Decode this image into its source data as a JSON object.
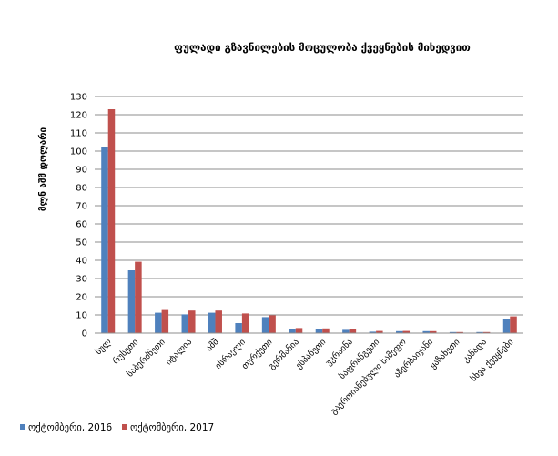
{
  "chart_data": {
    "type": "bar",
    "title": "ფულადი გზავნილების მოცულობა ქვეყნების მიხედვით",
    "xlabel": "",
    "ylabel": "მლნ აშშ დოლარი",
    "ylim": [
      0,
      130
    ],
    "yticks": [
      0,
      10,
      20,
      30,
      40,
      50,
      60,
      70,
      80,
      90,
      100,
      110,
      120,
      130
    ],
    "grid": true,
    "legend_position": "bottom-left",
    "categories": [
      "სულ",
      "რუსეთი",
      "საბერძნეთი",
      "იტალია",
      "აშშ",
      "ისრაელი",
      "თურქეთი",
      "გერმანია",
      "ესპანეთი",
      "უკრაინა",
      "საფრანგეთი",
      "გაერთიანებული სამეფო",
      "აზერბაიჯანი",
      "ყაზახეთი",
      "კანადა",
      "სხვა ქვეყნები"
    ],
    "series": [
      {
        "name": "ოქტომბერი, 2016",
        "color": "#4F81BD",
        "values": [
          102.5,
          34.5,
          11.2,
          10.3,
          11.2,
          5.5,
          8.8,
          2.3,
          2.3,
          1.8,
          0.8,
          1.1,
          1.1,
          0.6,
          0.6,
          7.6
        ]
      },
      {
        "name": "ოქტომბერი, 2017",
        "color": "#C0504D",
        "values": [
          123.0,
          39.2,
          12.7,
          12.4,
          12.4,
          10.8,
          9.8,
          2.8,
          2.6,
          2.1,
          1.2,
          1.2,
          1.1,
          0.6,
          0.6,
          9.2
        ]
      }
    ]
  }
}
